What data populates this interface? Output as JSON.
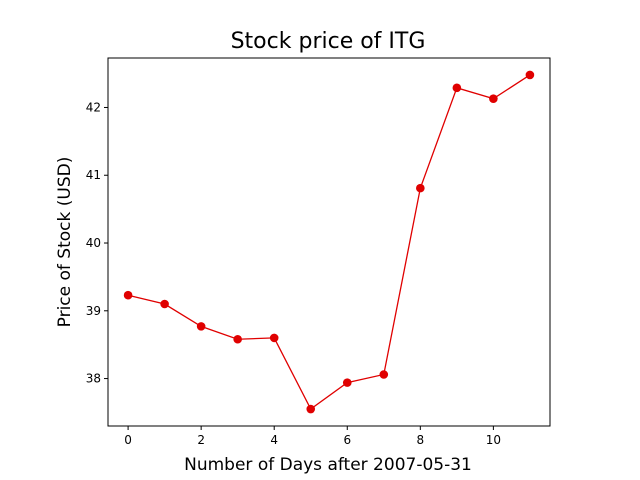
{
  "chart_data": {
    "type": "line",
    "title": "Stock price of ITG",
    "xlabel": "Number of Days after 2007-05-31",
    "ylabel": "Price of Stock (USD)",
    "x": [
      0,
      1,
      2,
      3,
      4,
      5,
      6,
      7,
      8,
      9,
      10,
      11
    ],
    "series": [
      {
        "values": [
          39.23,
          39.1,
          38.77,
          38.58,
          38.6,
          37.55,
          37.94,
          38.06,
          40.81,
          42.29,
          42.13,
          42.48
        ],
        "color": "#e00000",
        "marker": "circle"
      }
    ],
    "xticks": [
      0,
      2,
      4,
      6,
      8,
      10
    ],
    "yticks": [
      38,
      39,
      40,
      41,
      42
    ],
    "xlim": [
      -0.55,
      11.55
    ],
    "ylim": [
      37.3,
      42.73
    ],
    "grid": false,
    "legend": false
  }
}
